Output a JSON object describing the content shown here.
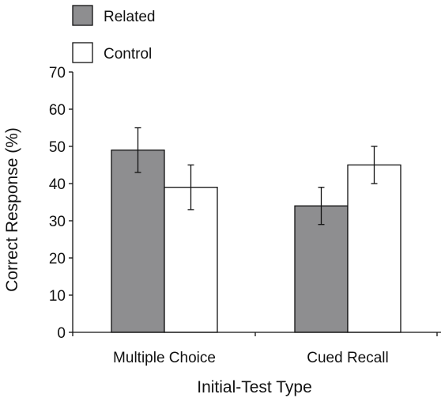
{
  "chart_data": {
    "type": "bar",
    "xlabel": "Initial-Test Type",
    "ylabel": "Correct Response (%)",
    "ylim": [
      0,
      70
    ],
    "yticks": [
      0,
      10,
      20,
      30,
      40,
      50,
      60,
      70
    ],
    "yticklabels": [
      "0",
      "10",
      "20",
      "30",
      "40",
      "50",
      "60",
      "70"
    ],
    "grid": false,
    "legend_position": "top-left",
    "categories": [
      "Multiple Choice",
      "Cued Recall"
    ],
    "series": [
      {
        "name": "Related",
        "color": "#8e8e90",
        "values": [
          49,
          34
        ],
        "error": [
          [
            43,
            55
          ],
          [
            29,
            39
          ]
        ]
      },
      {
        "name": "Control",
        "color": "#ffffff",
        "values": [
          39,
          45
        ],
        "error": [
          [
            33,
            45
          ],
          [
            40,
            50
          ]
        ]
      }
    ]
  }
}
